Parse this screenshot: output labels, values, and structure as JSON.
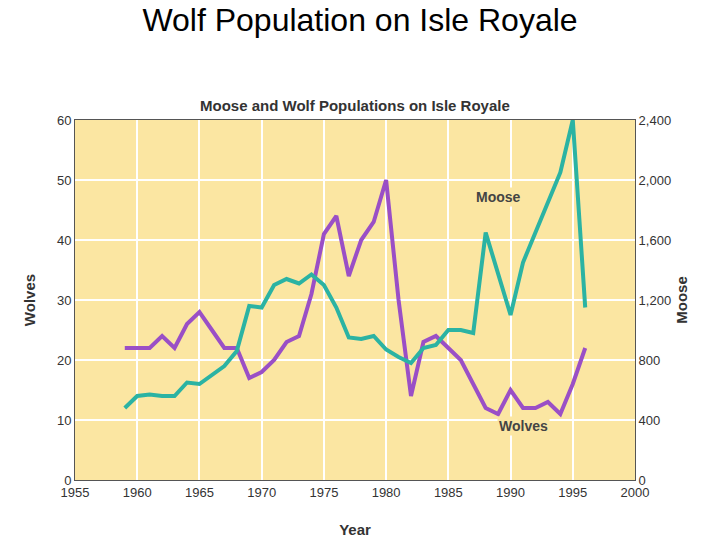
{
  "chart_data": {
    "type": "line",
    "title": "Wolf Population on Isle Royale",
    "subtitle": "Moose and Wolf Populations on Isle Royale",
    "x_label": "Year",
    "y_label": "Wolves",
    "y2_label": "Moose",
    "x": [
      1959,
      1960,
      1961,
      1962,
      1963,
      1964,
      1965,
      1966,
      1967,
      1968,
      1969,
      1970,
      1971,
      1972,
      1973,
      1974,
      1975,
      1976,
      1977,
      1978,
      1979,
      1980,
      1981,
      1982,
      1983,
      1984,
      1985,
      1986,
      1987,
      1988,
      1989,
      1990,
      1991,
      1992,
      1993,
      1994,
      1995,
      1996
    ],
    "series": [
      {
        "name": "Moose",
        "color": "#2bb3a3",
        "axis": "y2",
        "values": [
          480,
          560,
          570,
          560,
          560,
          650,
          640,
          700,
          760,
          860,
          1160,
          1150,
          1300,
          1340,
          1310,
          1370,
          1300,
          1150,
          950,
          940,
          960,
          870,
          820,
          780,
          880,
          900,
          1000,
          1000,
          980,
          1650,
          1380,
          1100,
          1450,
          1650,
          1850,
          2050,
          2400,
          1150
        ]
      },
      {
        "name": "Wolves",
        "color": "#9a4fc6",
        "values": [
          22,
          22,
          22,
          24,
          22,
          26,
          28,
          25,
          22,
          22,
          17,
          18,
          20,
          23,
          24,
          31,
          41,
          44,
          34,
          40,
          43,
          50,
          30,
          14,
          23,
          24,
          22,
          20,
          16,
          12,
          11,
          15,
          12,
          12,
          13,
          11,
          16,
          22
        ]
      }
    ],
    "xlim": [
      1955,
      2000
    ],
    "xticks": [
      1955,
      1960,
      1965,
      1970,
      1975,
      1980,
      1985,
      1990,
      1995,
      2000
    ],
    "ylim": [
      0,
      60
    ],
    "yticks": [
      0,
      10,
      20,
      30,
      40,
      50,
      60
    ],
    "y2lim": [
      0,
      2400
    ],
    "y2ticks": [
      0,
      400,
      800,
      {
        "value": 1200,
        "label": "1,200"
      },
      {
        "value": 1600,
        "label": "1,600"
      },
      {
        "value": 2000,
        "label": "2,000"
      },
      {
        "value": 2400,
        "label": "2,400"
      }
    ],
    "annotations": [
      {
        "text": "Moose",
        "x": 1989,
        "y": 1890,
        "axis": "y2"
      },
      {
        "text": "Wolves",
        "x": 1991,
        "y": 9,
        "axis": "y"
      }
    ],
    "grid": true
  }
}
